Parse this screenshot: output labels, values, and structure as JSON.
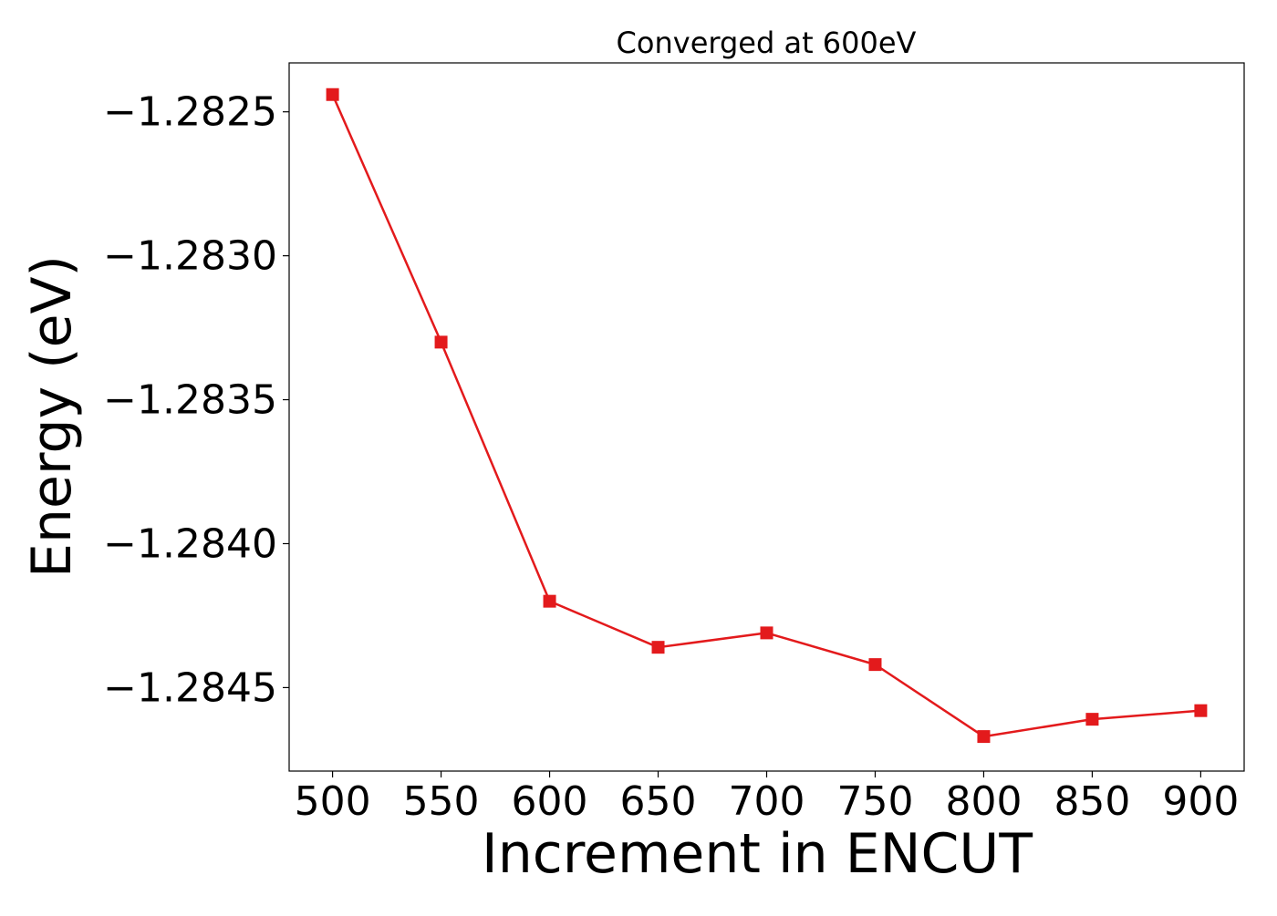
{
  "chart_data": {
    "type": "line",
    "title": "Converged at 600eV",
    "xlabel": "Increment in ENCUT",
    "ylabel": "Energy (eV)",
    "x": [
      500,
      550,
      600,
      650,
      700,
      750,
      800,
      850,
      900
    ],
    "series": [
      {
        "color": "#e31a1c",
        "marker": "square",
        "values": [
          -1.28244,
          -1.2833,
          -1.2842,
          -1.28436,
          -1.28431,
          -1.28442,
          -1.28467,
          -1.28461,
          -1.28458
        ]
      }
    ],
    "xlim": [
      480,
      920
    ],
    "ylim": [
      -1.28479,
      -1.28233
    ],
    "xticks": [
      500,
      550,
      600,
      650,
      700,
      750,
      800,
      850,
      900
    ],
    "xtick_labels": [
      "500",
      "550",
      "600",
      "650",
      "700",
      "750",
      "800",
      "850",
      "900"
    ],
    "yticks": [
      -1.2825,
      -1.283,
      -1.2835,
      -1.284,
      -1.2845
    ],
    "ytick_labels": [
      "−1.2825",
      "−1.2830",
      "−1.2835",
      "−1.2840",
      "−1.2845"
    ],
    "grid": false,
    "legend": "none"
  }
}
